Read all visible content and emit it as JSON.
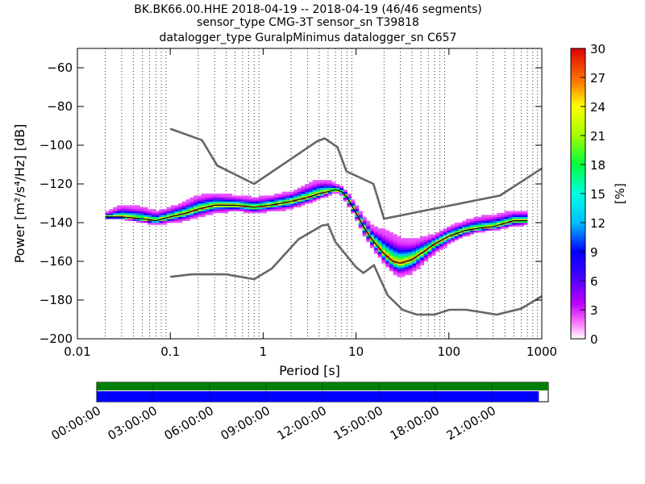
{
  "title": {
    "line1": "BK.BK66.00.HHE   2018-04-19 -- 2018-04-19  (46/46 segments)",
    "line2": "sensor_type CMG-3T sensor_sn T39818",
    "line3": "datalogger_type GuralpMinimus datalogger_sn C657"
  },
  "chart_data": [
    {
      "type": "heatmap",
      "xlabel": "Period [s]",
      "ylabel": "Power [m²/s⁴/Hz] [dB]",
      "xscale": "log",
      "xlim": [
        0.01,
        1000
      ],
      "ylim": [
        -200,
        -50
      ],
      "xticks": [
        {
          "value": 0.01,
          "label": "0.01"
        },
        {
          "value": 0.1,
          "label": "0.1"
        },
        {
          "value": 1,
          "label": "1"
        },
        {
          "value": 10,
          "label": "10"
        },
        {
          "value": 100,
          "label": "100"
        },
        {
          "value": 1000,
          "label": "1000"
        }
      ],
      "yticks": [
        {
          "value": -60,
          "label": "−60"
        },
        {
          "value": -80,
          "label": "−80"
        },
        {
          "value": -100,
          "label": "−100"
        },
        {
          "value": -120,
          "label": "−120"
        },
        {
          "value": -140,
          "label": "−140"
        },
        {
          "value": -160,
          "label": "−160"
        },
        {
          "value": -180,
          "label": "−180"
        },
        {
          "value": -200,
          "label": "−200"
        }
      ],
      "grid": "dotted vertical at log minor ticks",
      "noise_models": [
        {
          "x": [
            0.1,
            0.22,
            0.32,
            0.8,
            3.8,
            4.6,
            6.3,
            7.9,
            15.4,
            20,
            354.8,
            1000
          ],
          "y": [
            -91.5,
            -97.4,
            -110.5,
            -120,
            -98,
            -96.5,
            -101,
            -113.5,
            -120,
            -138,
            -126,
            -112
          ]
        },
        {
          "x": [
            0.1,
            0.17,
            0.4,
            0.8,
            1.24,
            2.4,
            4.3,
            5,
            6,
            10,
            12,
            15.6,
            21.9,
            31.6,
            45,
            70,
            101,
            154,
            328,
            600,
            1000
          ],
          "y": [
            -168,
            -166.7,
            -166.7,
            -169.2,
            -163.7,
            -148.6,
            -141.5,
            -141,
            -150,
            -163,
            -166,
            -162,
            -177.5,
            -185,
            -187.5,
            -187.5,
            -185,
            -185,
            -187.5,
            -184.4,
            -178
          ]
        }
      ],
      "mode_line": {
        "x": [
          0.02,
          0.03,
          0.05,
          0.07,
          0.1,
          0.15,
          0.2,
          0.3,
          0.5,
          0.8,
          1.2,
          2,
          3,
          4,
          5,
          6,
          7,
          8,
          10,
          12,
          15,
          20,
          25,
          30,
          40,
          50,
          70,
          100,
          150,
          200,
          300,
          500,
          700
        ],
        "y": [
          -137,
          -137,
          -138,
          -139,
          -137,
          -135,
          -133,
          -131,
          -131,
          -132,
          -131,
          -129,
          -127,
          -125,
          -124,
          -123,
          -124,
          -127,
          -135,
          -142,
          -149,
          -156,
          -160,
          -161,
          -159,
          -156,
          -151,
          -147,
          -144,
          -143,
          -142,
          -139,
          -139
        ]
      },
      "density_spread": {
        "x": [
          0.02,
          0.03,
          0.05,
          0.07,
          0.1,
          0.15,
          0.2,
          0.3,
          0.5,
          0.8,
          1.2,
          2,
          3,
          4,
          5,
          6,
          7,
          8,
          10,
          12,
          15,
          20,
          25,
          30,
          40,
          50,
          70,
          100,
          150,
          200,
          300,
          500,
          700
        ],
        "low": [
          -137,
          -138,
          -140,
          -141,
          -140,
          -139,
          -137,
          -135,
          -134,
          -135,
          -134,
          -133,
          -130,
          -128,
          -126,
          -124,
          -126,
          -130,
          -138,
          -146,
          -153,
          -161,
          -166,
          -168,
          -166,
          -162,
          -156,
          -151,
          -147,
          -145,
          -144,
          -142,
          -141
        ],
        "high": [
          -135,
          -131,
          -132,
          -134,
          -132,
          -129,
          -126,
          -125,
          -126,
          -127,
          -126,
          -124,
          -120,
          -118,
          -118,
          -120,
          -121,
          -124,
          -131,
          -137,
          -142,
          -144,
          -146,
          -148,
          -149,
          -148,
          -146,
          -142,
          -139,
          -137,
          -136,
          -134,
          -134
        ]
      }
    },
    {
      "type": "colorbar",
      "label": "[%]",
      "range": [
        0,
        30
      ],
      "ticks": [
        0,
        3,
        6,
        9,
        12,
        15,
        18,
        21,
        24,
        27,
        30
      ]
    },
    {
      "type": "timeline",
      "tick_labels": [
        "00:00:00",
        "03:00:00",
        "06:00:00",
        "09:00:00",
        "12:00:00",
        "15:00:00",
        "18:00:00",
        "21:00:00"
      ],
      "range_hours": [
        0,
        24
      ],
      "data_coverage_hours": [
        0,
        24
      ],
      "psd_coverage_hours": [
        0,
        23.5
      ],
      "colors": {
        "data": "#007f00",
        "psd": "#0000ff"
      }
    }
  ]
}
